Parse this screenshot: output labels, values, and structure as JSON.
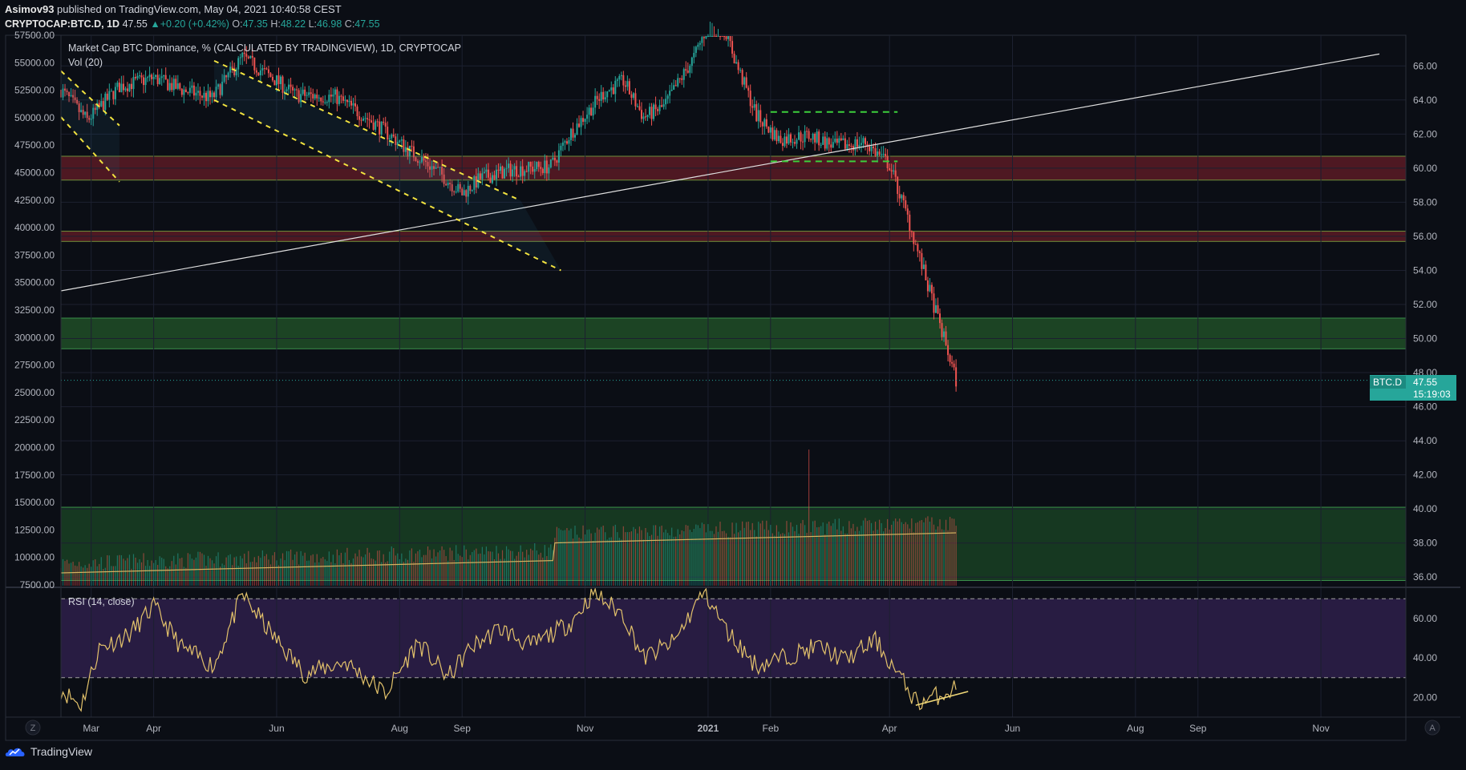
{
  "header": {
    "publisher": "Asimov93",
    "published_text": "published on TradingView.com, May 04, 2021 10:40:58 CEST",
    "symbol": "CRYPTOCAP:BTC.D, 1D",
    "last": "47.55",
    "change": "+0.20 (+0.42%)",
    "o_label": "O:",
    "o": "47.35",
    "h_label": "H:",
    "h": "48.22",
    "l_label": "L:",
    "l": "46.98",
    "c_label": "C:",
    "c": "47.55"
  },
  "legend": {
    "title": "Market Cap BTC Dominance, % (CALCULATED BY TRADINGVIEW), 1D, CRYPTOCAP",
    "vol": "Vol (20)",
    "rsi": "RSI (14, close)"
  },
  "price_badge": {
    "symbol": "BTC.D",
    "value": "47.55",
    "countdown": "15:19:03"
  },
  "left_axis_labels": [
    "57500.00",
    "55000.00",
    "52500.00",
    "50000.00",
    "47500.00",
    "45000.00",
    "42500.00",
    "40000.00",
    "37500.00",
    "35000.00",
    "32500.00",
    "30000.00",
    "27500.00",
    "25000.00",
    "22500.00",
    "20000.00",
    "17500.00",
    "15000.00",
    "12500.00",
    "10000.00",
    "7500.00"
  ],
  "right_axis_labels": [
    "66.00",
    "64.00",
    "62.00",
    "60.00",
    "58.00",
    "56.00",
    "54.00",
    "52.00",
    "50.00",
    "48.00",
    "46.00",
    "44.00",
    "42.00",
    "40.00",
    "38.00",
    "36.00"
  ],
  "rsi_axis_labels": [
    "60.00",
    "40.00",
    "20.00"
  ],
  "time_axis_labels": [
    "Mar",
    "Apr",
    "Jun",
    "Aug",
    "Sep",
    "Nov",
    "2021",
    "Feb",
    "Apr",
    "Jun",
    "Aug",
    "Sep",
    "Nov"
  ],
  "axis_buttons": {
    "left": "Z",
    "right": "A"
  },
  "footer": {
    "brand": "TradingView"
  },
  "colors": {
    "bg": "#0b0e15",
    "grid": "#1c2030",
    "up": "#26a69a",
    "down": "#ef5350",
    "channel": "#ffeb3b",
    "trendline": "#e0e0e0",
    "resistance_zone": "#5a1a24",
    "support_zone": "#1e4a26",
    "rsi_band": "#2a1d45",
    "ma": "#d4b360",
    "rsi_line": "#e3c26b",
    "badge": "#26a69a"
  },
  "chart_data": {
    "type": "candlestick",
    "title": "Market Cap BTC Dominance, % (CALCULATED BY TRADINGVIEW), 1D, CRYPTOCAP",
    "price_range_pct": [
      35.4,
      67.8
    ],
    "last_close": 47.55,
    "price_path": [
      {
        "t": "2020-02-15",
        "v": 64.6
      },
      {
        "t": "2020-02-28",
        "v": 62.8
      },
      {
        "t": "2020-03-15",
        "v": 64.8
      },
      {
        "t": "2020-04-01",
        "v": 65.3
      },
      {
        "t": "2020-04-15",
        "v": 64.6
      },
      {
        "t": "2020-04-30",
        "v": 64.1
      },
      {
        "t": "2020-05-15",
        "v": 66.5
      },
      {
        "t": "2020-05-31",
        "v": 65.2
      },
      {
        "t": "2020-06-10",
        "v": 64.3
      },
      {
        "t": "2020-06-30",
        "v": 64.2
      },
      {
        "t": "2020-07-20",
        "v": 62.6
      },
      {
        "t": "2020-08-05",
        "v": 61.1
      },
      {
        "t": "2020-08-20",
        "v": 59.8
      },
      {
        "t": "2020-09-01",
        "v": 58.5
      },
      {
        "t": "2020-09-10",
        "v": 59.4
      },
      {
        "t": "2020-09-25",
        "v": 59.9
      },
      {
        "t": "2020-10-15",
        "v": 60.1
      },
      {
        "t": "2020-10-25",
        "v": 62.1
      },
      {
        "t": "2020-11-10",
        "v": 64.4
      },
      {
        "t": "2020-11-20",
        "v": 65.1
      },
      {
        "t": "2020-11-30",
        "v": 63.0
      },
      {
        "t": "2020-12-10",
        "v": 63.6
      },
      {
        "t": "2020-12-25",
        "v": 66.5
      },
      {
        "t": "2021-01-03",
        "v": 69.0
      },
      {
        "t": "2021-01-10",
        "v": 68.0
      },
      {
        "t": "2021-01-15",
        "v": 66.1
      },
      {
        "t": "2021-01-25",
        "v": 63.1
      },
      {
        "t": "2021-02-05",
        "v": 61.7
      },
      {
        "t": "2021-02-20",
        "v": 61.9
      },
      {
        "t": "2021-03-05",
        "v": 61.3
      },
      {
        "t": "2021-03-20",
        "v": 61.5
      },
      {
        "t": "2021-04-01",
        "v": 60.2
      },
      {
        "t": "2021-04-10",
        "v": 57.1
      },
      {
        "t": "2021-04-20",
        "v": 53.1
      },
      {
        "t": "2021-04-28",
        "v": 50.0
      },
      {
        "t": "2021-05-04",
        "v": 47.55
      }
    ],
    "trendline": {
      "from": {
        "t": "2020-02-15",
        "v": 52.8
      },
      "to": {
        "t": "2021-11-30",
        "v": 66.7
      }
    },
    "resistance_zones": [
      [
        59.3,
        60.7
      ],
      [
        55.7,
        56.3
      ]
    ],
    "support_zones": [
      [
        49.4,
        51.2
      ]
    ],
    "volume_zone_pct": [
      35.8,
      40.1
    ],
    "volume_ma_period": 20,
    "rsi": {
      "period": 14,
      "upper": 70,
      "lower": 30,
      "range": [
        10,
        75
      ],
      "path": [
        {
          "t": "2020-02-15",
          "v": 24
        },
        {
          "t": "2020-02-25",
          "v": 16
        },
        {
          "t": "2020-03-05",
          "v": 45
        },
        {
          "t": "2020-03-20",
          "v": 52
        },
        {
          "t": "2020-04-01",
          "v": 66
        },
        {
          "t": "2020-04-15",
          "v": 45
        },
        {
          "t": "2020-05-01",
          "v": 36
        },
        {
          "t": "2020-05-15",
          "v": 72
        },
        {
          "t": "2020-05-31",
          "v": 50
        },
        {
          "t": "2020-06-15",
          "v": 32
        },
        {
          "t": "2020-07-05",
          "v": 38
        },
        {
          "t": "2020-07-25",
          "v": 22
        },
        {
          "t": "2020-08-10",
          "v": 48
        },
        {
          "t": "2020-08-25",
          "v": 30
        },
        {
          "t": "2020-09-05",
          "v": 45
        },
        {
          "t": "2020-09-20",
          "v": 55
        },
        {
          "t": "2020-10-05",
          "v": 46
        },
        {
          "t": "2020-10-25",
          "v": 58
        },
        {
          "t": "2020-11-05",
          "v": 73
        },
        {
          "t": "2020-11-20",
          "v": 62
        },
        {
          "t": "2020-11-30",
          "v": 40
        },
        {
          "t": "2020-12-15",
          "v": 48
        },
        {
          "t": "2020-12-30",
          "v": 74
        },
        {
          "t": "2021-01-10",
          "v": 54
        },
        {
          "t": "2021-01-25",
          "v": 36
        },
        {
          "t": "2021-02-10",
          "v": 41
        },
        {
          "t": "2021-02-25",
          "v": 46
        },
        {
          "t": "2021-03-10",
          "v": 39
        },
        {
          "t": "2021-03-25",
          "v": 49
        },
        {
          "t": "2021-04-05",
          "v": 32
        },
        {
          "t": "2021-04-15",
          "v": 17
        },
        {
          "t": "2021-04-25",
          "v": 21
        },
        {
          "t": "2021-05-04",
          "v": 25
        }
      ],
      "divergence_line": {
        "from": {
          "t": "2021-04-14",
          "v": 16
        },
        "to": {
          "t": "2021-05-10",
          "v": 23
        }
      }
    }
  }
}
